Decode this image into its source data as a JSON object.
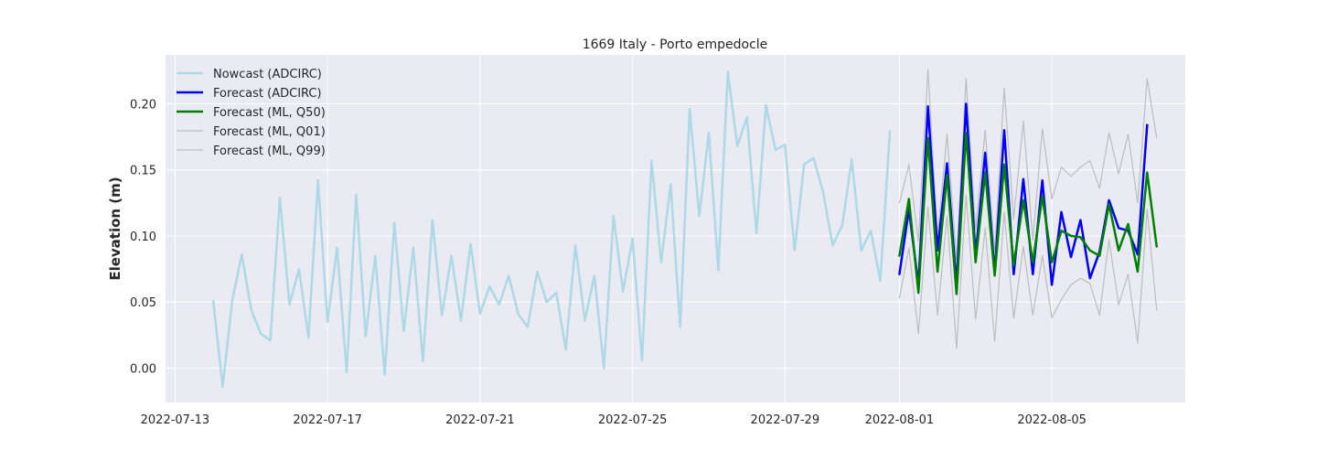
{
  "chart_data": {
    "type": "line",
    "title": "1669 Italy - Porto empedocle",
    "xlabel": "",
    "ylabel": "Elevation (m)",
    "xlim": [
      "2022-07-12T18:00",
      "2022-08-08T12:00"
    ],
    "ylim": [
      -0.026,
      0.237
    ],
    "x_ticks": [
      "2022-07-13",
      "2022-07-17",
      "2022-07-21",
      "2022-07-25",
      "2022-07-29",
      "2022-08-01",
      "2022-08-05"
    ],
    "y_ticks": [
      0.0,
      0.05,
      0.1,
      0.15,
      0.2
    ],
    "y_tick_labels": [
      "0.00",
      "0.05",
      "0.10",
      "0.15",
      "0.20"
    ],
    "grid": true,
    "legend_position": "top-left",
    "background": "#eaeaf2",
    "series": [
      {
        "name": "Nowcast (ADCIRC)",
        "color": "#add8e6",
        "x": [
          "2022-07-14T00:00",
          "2022-07-14T06:00",
          "2022-07-14T12:00",
          "2022-07-14T18:00",
          "2022-07-15T00:00",
          "2022-07-15T06:00",
          "2022-07-15T12:00",
          "2022-07-15T18:00",
          "2022-07-16T00:00",
          "2022-07-16T06:00",
          "2022-07-16T12:00",
          "2022-07-16T18:00",
          "2022-07-17T00:00",
          "2022-07-17T06:00",
          "2022-07-17T12:00",
          "2022-07-17T18:00",
          "2022-07-18T00:00",
          "2022-07-18T06:00",
          "2022-07-18T12:00",
          "2022-07-18T18:00",
          "2022-07-19T00:00",
          "2022-07-19T06:00",
          "2022-07-19T12:00",
          "2022-07-19T18:00",
          "2022-07-20T00:00",
          "2022-07-20T06:00",
          "2022-07-20T12:00",
          "2022-07-20T18:00",
          "2022-07-21T00:00",
          "2022-07-21T06:00",
          "2022-07-21T12:00",
          "2022-07-21T18:00",
          "2022-07-22T00:00",
          "2022-07-22T06:00",
          "2022-07-22T12:00",
          "2022-07-22T18:00",
          "2022-07-23T00:00",
          "2022-07-23T06:00",
          "2022-07-23T12:00",
          "2022-07-23T18:00",
          "2022-07-24T00:00",
          "2022-07-24T06:00",
          "2022-07-24T12:00",
          "2022-07-24T18:00",
          "2022-07-25T00:00",
          "2022-07-25T06:00",
          "2022-07-25T12:00",
          "2022-07-25T18:00",
          "2022-07-26T00:00",
          "2022-07-26T06:00",
          "2022-07-26T12:00",
          "2022-07-26T18:00",
          "2022-07-27T00:00",
          "2022-07-27T06:00",
          "2022-07-27T12:00",
          "2022-07-27T18:00",
          "2022-07-28T00:00",
          "2022-07-28T06:00",
          "2022-07-28T12:00",
          "2022-07-28T18:00",
          "2022-07-29T00:00",
          "2022-07-29T06:00",
          "2022-07-29T12:00",
          "2022-07-29T18:00",
          "2022-07-30T00:00",
          "2022-07-30T06:00",
          "2022-07-30T12:00",
          "2022-07-30T18:00",
          "2022-07-31T00:00",
          "2022-07-31T06:00",
          "2022-07-31T12:00",
          "2022-07-31T18:00"
        ],
        "y": [
          0.051,
          -0.014,
          0.051,
          0.086,
          0.044,
          0.026,
          0.021,
          0.129,
          0.048,
          0.075,
          0.023,
          0.142,
          0.035,
          0.091,
          -0.003,
          0.131,
          0.024,
          0.085,
          -0.005,
          0.11,
          0.028,
          0.091,
          0.005,
          0.112,
          0.04,
          0.085,
          0.036,
          0.094,
          0.041,
          0.062,
          0.048,
          0.07,
          0.041,
          0.031,
          0.073,
          0.05,
          0.057,
          0.014,
          0.093,
          0.036,
          0.07,
          0.0,
          0.115,
          0.058,
          0.098,
          0.006,
          0.157,
          0.08,
          0.139,
          0.031,
          0.196,
          0.115,
          0.178,
          0.074,
          0.224,
          0.168,
          0.19,
          0.102,
          0.199,
          0.165,
          0.169,
          0.089,
          0.154,
          0.159,
          0.133,
          0.093,
          0.108,
          0.158,
          0.089,
          0.104,
          0.066,
          0.179
        ]
      },
      {
        "name": "Forecast (ADCIRC)",
        "color": "#0000ff",
        "x": [
          "2022-08-01T00:00",
          "2022-08-01T06:00",
          "2022-08-01T12:00",
          "2022-08-01T18:00",
          "2022-08-02T00:00",
          "2022-08-02T06:00",
          "2022-08-02T12:00",
          "2022-08-02T18:00",
          "2022-08-03T00:00",
          "2022-08-03T06:00",
          "2022-08-03T12:00",
          "2022-08-03T18:00",
          "2022-08-04T00:00",
          "2022-08-04T06:00",
          "2022-08-04T12:00",
          "2022-08-04T18:00",
          "2022-08-05T00:00",
          "2022-08-05T06:00",
          "2022-08-05T12:00",
          "2022-08-05T18:00",
          "2022-08-06T00:00",
          "2022-08-06T06:00",
          "2022-08-06T12:00",
          "2022-08-06T18:00",
          "2022-08-07T00:00",
          "2022-08-07T06:00",
          "2022-08-07T12:00",
          "2022-08-07T18:00"
        ],
        "y": [
          0.071,
          0.12,
          0.063,
          0.198,
          0.089,
          0.155,
          0.063,
          0.2,
          0.085,
          0.163,
          0.072,
          0.18,
          0.071,
          0.143,
          0.071,
          0.142,
          0.063,
          0.118,
          0.084,
          0.112,
          0.068,
          0.088,
          0.127,
          0.106,
          0.104,
          0.086,
          0.184,
          null
        ]
      },
      {
        "name": "Forecast (ML, Q50)",
        "color": "#008000",
        "x": [
          "2022-08-01T00:00",
          "2022-08-01T06:00",
          "2022-08-01T12:00",
          "2022-08-01T18:00",
          "2022-08-02T00:00",
          "2022-08-02T06:00",
          "2022-08-02T12:00",
          "2022-08-02T18:00",
          "2022-08-03T00:00",
          "2022-08-03T06:00",
          "2022-08-03T12:00",
          "2022-08-03T18:00",
          "2022-08-04T00:00",
          "2022-08-04T06:00",
          "2022-08-04T12:00",
          "2022-08-04T18:00",
          "2022-08-05T00:00",
          "2022-08-05T06:00",
          "2022-08-05T12:00",
          "2022-08-05T18:00",
          "2022-08-06T00:00",
          "2022-08-06T06:00",
          "2022-08-06T12:00",
          "2022-08-06T18:00",
          "2022-08-07T00:00",
          "2022-08-07T06:00",
          "2022-08-07T12:00",
          "2022-08-07T18:00"
        ],
        "y": [
          0.085,
          0.128,
          0.057,
          0.174,
          0.073,
          0.146,
          0.056,
          0.178,
          0.08,
          0.148,
          0.07,
          0.154,
          0.078,
          0.127,
          0.08,
          0.13,
          0.08,
          0.104,
          0.1,
          0.099,
          0.089,
          0.085,
          0.124,
          0.089,
          0.109,
          0.073,
          0.148,
          0.092
        ]
      },
      {
        "name": "Forecast (ML, Q01)",
        "color": "#bdbdbd",
        "x": [
          "2022-08-01T00:00",
          "2022-08-01T06:00",
          "2022-08-01T12:00",
          "2022-08-01T18:00",
          "2022-08-02T00:00",
          "2022-08-02T06:00",
          "2022-08-02T12:00",
          "2022-08-02T18:00",
          "2022-08-03T00:00",
          "2022-08-03T06:00",
          "2022-08-03T12:00",
          "2022-08-03T18:00",
          "2022-08-04T00:00",
          "2022-08-04T06:00",
          "2022-08-04T12:00",
          "2022-08-04T18:00",
          "2022-08-05T00:00",
          "2022-08-05T06:00",
          "2022-08-05T12:00",
          "2022-08-05T18:00",
          "2022-08-06T00:00",
          "2022-08-06T06:00",
          "2022-08-06T12:00",
          "2022-08-06T18:00",
          "2022-08-07T00:00",
          "2022-08-07T06:00",
          "2022-08-07T12:00",
          "2022-08-07T18:00"
        ],
        "y": [
          0.053,
          0.091,
          0.026,
          0.122,
          0.04,
          0.115,
          0.015,
          0.131,
          0.037,
          0.106,
          0.02,
          0.118,
          0.038,
          0.092,
          0.04,
          0.085,
          0.038,
          0.052,
          0.063,
          0.068,
          0.064,
          0.04,
          0.097,
          0.048,
          0.071,
          0.019,
          0.12,
          0.044
        ]
      },
      {
        "name": "Forecast (ML, Q99)",
        "color": "#bdbdbd",
        "x": [
          "2022-08-01T00:00",
          "2022-08-01T06:00",
          "2022-08-01T12:00",
          "2022-08-01T18:00",
          "2022-08-02T00:00",
          "2022-08-02T06:00",
          "2022-08-02T12:00",
          "2022-08-02T18:00",
          "2022-08-03T00:00",
          "2022-08-03T06:00",
          "2022-08-03T12:00",
          "2022-08-03T18:00",
          "2022-08-04T00:00",
          "2022-08-04T06:00",
          "2022-08-04T12:00",
          "2022-08-04T18:00",
          "2022-08-05T00:00",
          "2022-08-05T06:00",
          "2022-08-05T12:00",
          "2022-08-05T18:00",
          "2022-08-06T00:00",
          "2022-08-06T06:00",
          "2022-08-06T12:00",
          "2022-08-06T18:00",
          "2022-08-07T00:00",
          "2022-08-07T06:00",
          "2022-08-07T12:00",
          "2022-08-07T18:00"
        ],
        "y": [
          0.125,
          0.154,
          0.096,
          0.226,
          0.099,
          0.177,
          0.082,
          0.219,
          0.105,
          0.18,
          0.088,
          0.212,
          0.113,
          0.187,
          0.097,
          0.181,
          0.128,
          0.152,
          0.145,
          0.152,
          0.157,
          0.136,
          0.178,
          0.147,
          0.177,
          0.125,
          0.219,
          0.174
        ]
      }
    ]
  }
}
